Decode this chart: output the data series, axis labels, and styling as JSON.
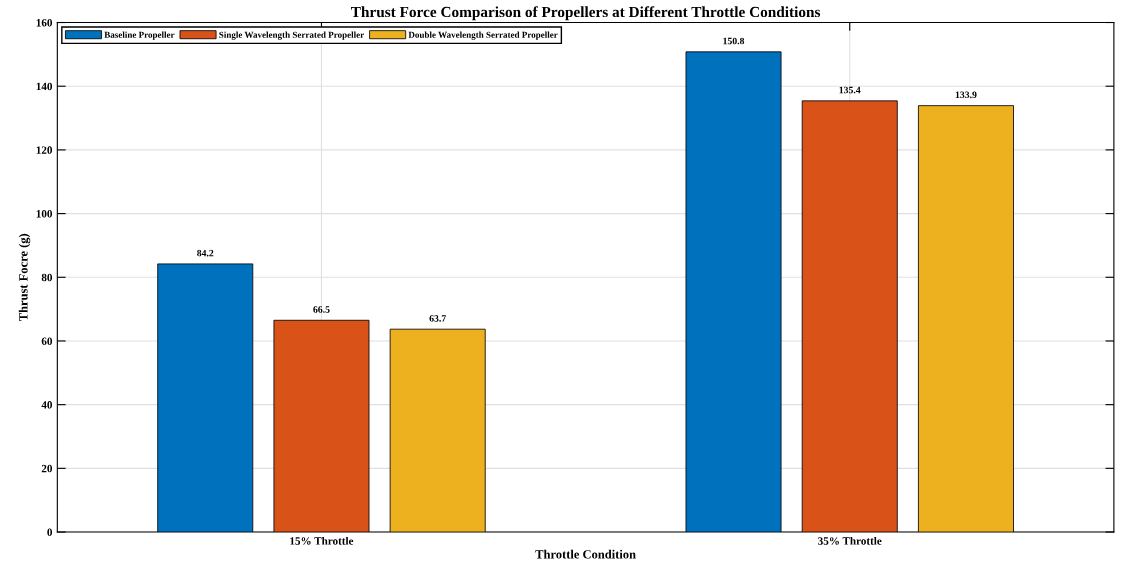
{
  "chart_data": {
    "type": "bar",
    "title": "Thrust Force Comparison of Propellers at Different Throttle Conditions",
    "xlabel": "Throttle Condition",
    "ylabel": "Thrust Focre (g)",
    "categories": [
      "15% Throttle",
      "35% Throttle"
    ],
    "series": [
      {
        "name": "Baseline Propeller",
        "color": "#0072bd",
        "values": [
          84.2,
          150.8
        ]
      },
      {
        "name": "Single Wavelength Serrated Propeller",
        "color": "#d95319",
        "values": [
          66.5,
          135.4
        ]
      },
      {
        "name": "Double Wavelength Serrated Propeller",
        "color": "#edb120",
        "values": [
          63.7,
          133.9
        ]
      }
    ],
    "ylim": [
      0,
      160
    ],
    "yticks": [
      0,
      20,
      40,
      60,
      80,
      100,
      120,
      140,
      160
    ],
    "grid": true,
    "legend": "top left",
    "data_labels": true
  }
}
